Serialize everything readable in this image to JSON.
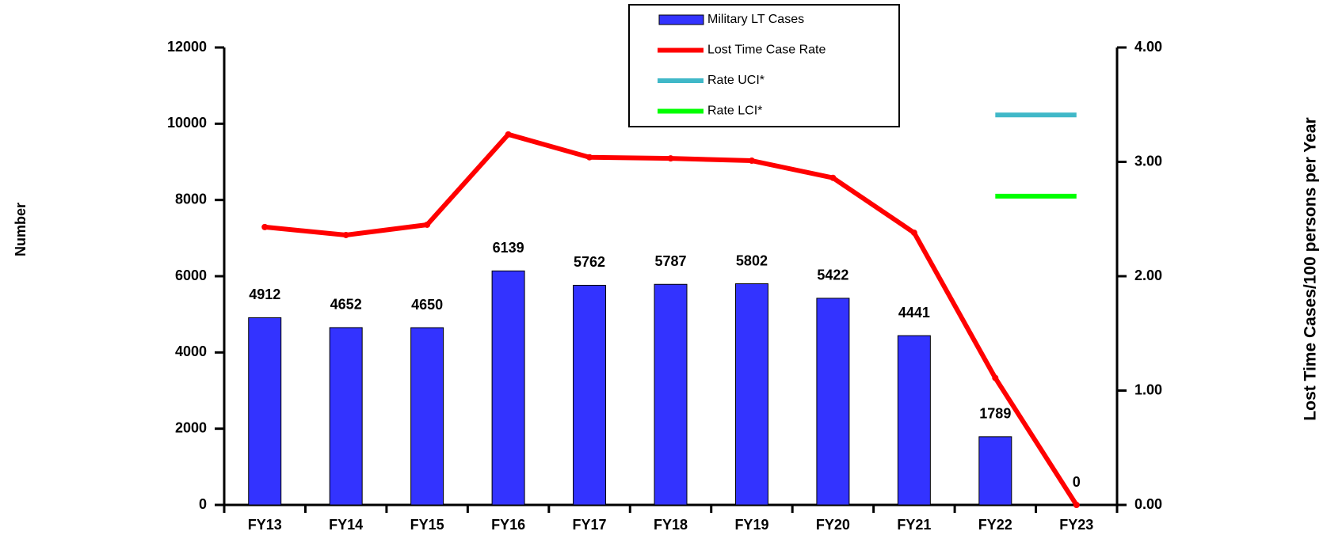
{
  "chart_data": {
    "type": "bar-line",
    "y_label": "Number",
    "y2_label": "Lost Time Cases/100 persons per Year",
    "categories": [
      "FY13",
      "FY14",
      "FY15",
      "FY16",
      "FY17",
      "FY18",
      "FY19",
      "FY20",
      "FY21",
      "FY22",
      "FY23"
    ],
    "series": [
      {
        "name": "Military LT Cases",
        "type": "bar",
        "color": "#3333ff",
        "values": [
          4912,
          4652,
          4650,
          6139,
          5762,
          5787,
          5802,
          5422,
          4441,
          1789,
          0
        ]
      },
      {
        "name": "Lost Time Case Rate",
        "type": "line",
        "axis": "y2",
        "color": "#ff0000",
        "values": [
          2.43,
          2.36,
          2.45,
          3.24,
          3.04,
          3.03,
          3.01,
          2.86,
          2.38,
          1.11,
          0
        ]
      },
      {
        "name": "Rate UCI*",
        "type": "line",
        "axis": "y2",
        "color": "#40b8c8",
        "values": [
          null,
          null,
          null,
          null,
          null,
          null,
          null,
          null,
          null,
          3.41,
          3.41
        ]
      },
      {
        "name": "Rate LCI*",
        "type": "line",
        "axis": "y2",
        "color": "#00ff00",
        "values": [
          null,
          null,
          null,
          null,
          null,
          null,
          null,
          null,
          null,
          2.7,
          2.7
        ]
      }
    ],
    "ylim": [
      0,
      12000
    ],
    "yticks": [
      0,
      2000,
      4000,
      6000,
      8000,
      10000,
      12000
    ],
    "y2lim": [
      0,
      4
    ],
    "y2ticks": [
      {
        "value": 0,
        "label": "0.00"
      },
      {
        "value": 1,
        "label": "1.00"
      },
      {
        "value": 2,
        "label": "2.00"
      },
      {
        "value": 3,
        "label": "3.00"
      },
      {
        "value": 4,
        "label": "4.00"
      }
    ],
    "legend": "top"
  }
}
